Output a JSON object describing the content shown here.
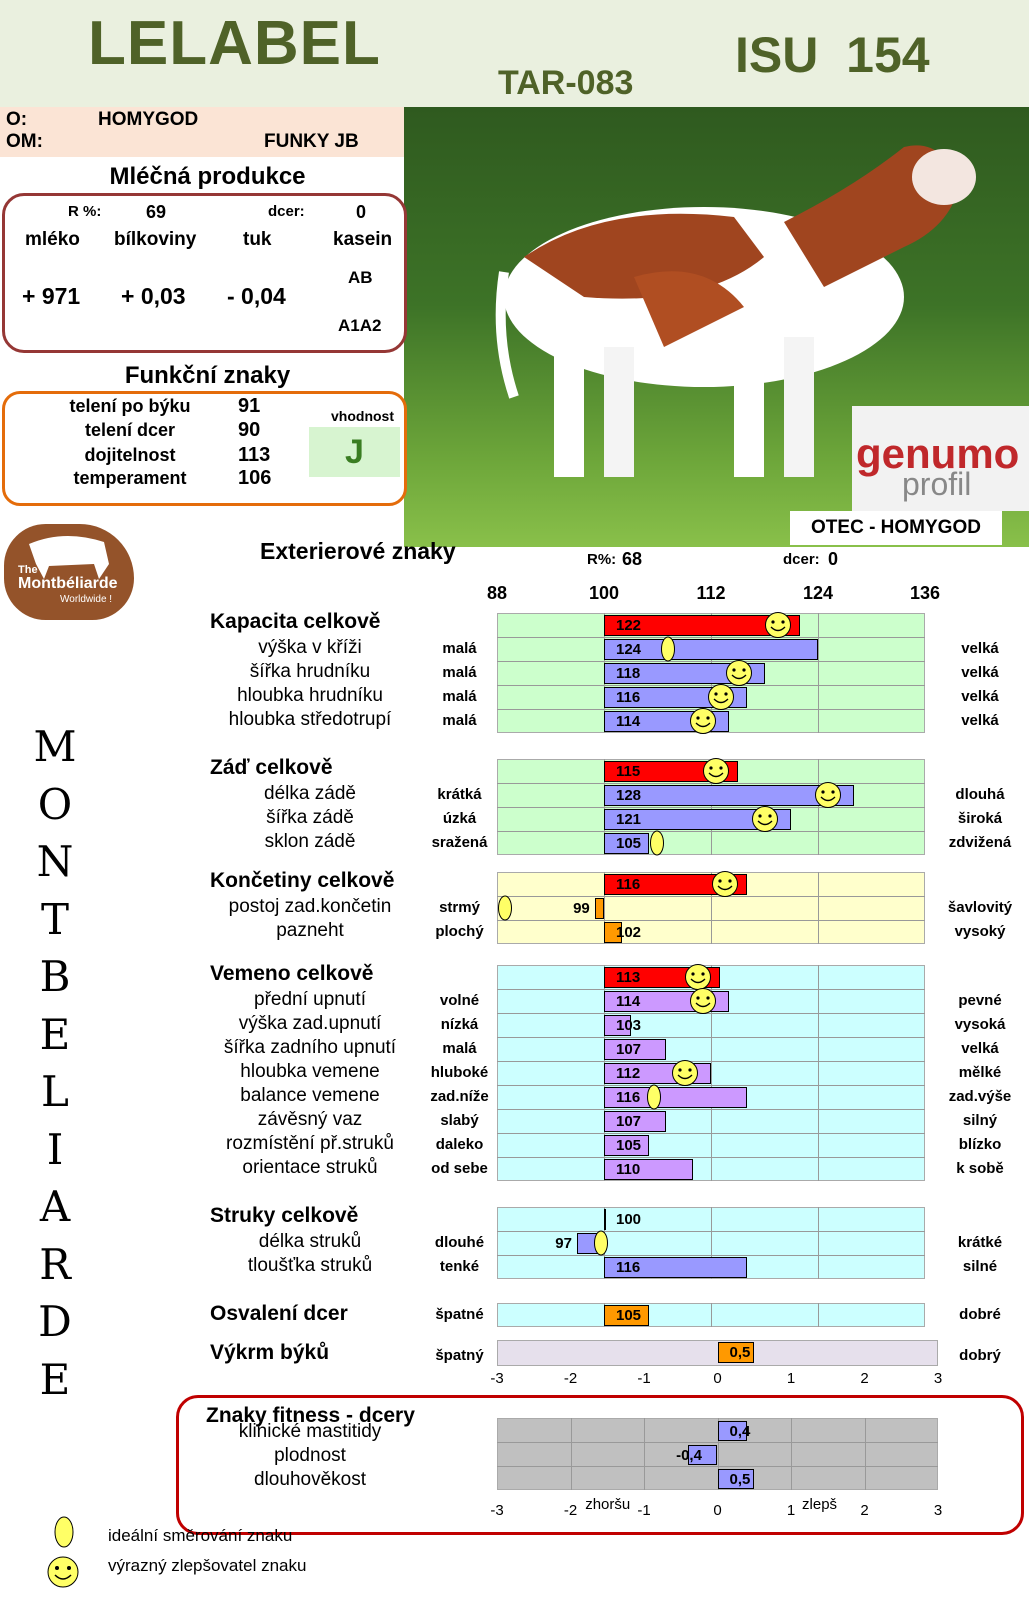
{
  "header": {
    "name": "LELABEL",
    "code": "TAR-083",
    "isu": "ISU  154"
  },
  "pedigree": {
    "o_label": "O:",
    "o_value": "HOMYGOD",
    "om_label": "OM:",
    "om_value": "FUNKY JB"
  },
  "milk": {
    "title": "Mléčná produkce",
    "r_label": "R %:",
    "r_value": "69",
    "dcer_label": "dcer:",
    "dcer_value": "0",
    "cols": [
      "mléko",
      "bílkoviny",
      "tuk",
      "kasein"
    ],
    "values": [
      "+ 971",
      "+ 0,03",
      "- 0,04"
    ],
    "kasein": [
      "AB",
      "A1A2"
    ]
  },
  "functional": {
    "title": "Funkční znaky",
    "vhodnost_label": "vhodnost",
    "vhodnost_value": "J",
    "rows": [
      {
        "label": "telení po býku",
        "value": "91"
      },
      {
        "label": "telení dcer",
        "value": "90"
      },
      {
        "label": "dojitelnost",
        "value": "113"
      },
      {
        "label": "temperament",
        "value": "106"
      }
    ]
  },
  "logo": {
    "the": "The",
    "brand": "Montbéliarde",
    "tag": "Worldwide !"
  },
  "genumo": {
    "line1": "genumo",
    "line2": "profil"
  },
  "otec": "OTEC - HOMYGOD",
  "vertical_title": [
    "M",
    "O",
    "N",
    "T",
    "B",
    "E",
    "L",
    "I",
    "A",
    "R",
    "D",
    "E"
  ],
  "exterior": {
    "title": "Exterierové znaky",
    "r_label": "R%:",
    "r_value": "68",
    "dcer_label": "dcer:",
    "dcer_value": "0",
    "scale": [
      "88",
      "100",
      "112",
      "124",
      "136"
    ]
  },
  "colors": {
    "green": "#ccffcc",
    "yellow": "#ffffcc",
    "cyan": "#ccffff",
    "lavender": "#e6e0ec",
    "gray": "#c0c0c0",
    "red": "#ff0000",
    "blue": "#9999ff",
    "orange": "#ff9900",
    "purple": "#cc99ff"
  },
  "chart_data": [
    {
      "type": "bar",
      "name_hidden": true,
      "axis": [
        88,
        136
      ],
      "base": 100,
      "groups": [
        {
          "title": "Kapacita celkově",
          "total": 122,
          "total_smiley": true,
          "bg": "green",
          "barColor": "blue",
          "rows": [
            {
              "label": "výška v kříži",
              "left": "malá",
              "right": "velká",
              "value": 124,
              "marker": "ideal"
            },
            {
              "label": "šířka hrudníku",
              "left": "malá",
              "right": "velká",
              "value": 118,
              "marker": "smiley"
            },
            {
              "label": "hloubka hrudníku",
              "left": "malá",
              "right": "velká",
              "value": 116,
              "marker": "smiley"
            },
            {
              "label": "hloubka středotrupí",
              "left": "malá",
              "right": "velká",
              "value": 114,
              "marker": "smiley"
            }
          ]
        },
        {
          "title": "Záď celkově",
          "total": 115,
          "total_smiley": true,
          "bg": "green",
          "barColor": "blue",
          "rows": [
            {
              "label": "délka zádě",
              "left": "krátká",
              "right": "dlouhá",
              "value": 128,
              "marker": "smiley"
            },
            {
              "label": "šířka zádě",
              "left": "úzká",
              "right": "široká",
              "value": 121,
              "marker": "smiley"
            },
            {
              "label": "sklon zádě",
              "left": "sražená",
              "right": "zdvižená",
              "value": 105,
              "marker": "ideal"
            }
          ]
        },
        {
          "title": "Končetiny celkově",
          "total": 116,
          "total_smiley": true,
          "bg": "yellow",
          "barColor": "orange",
          "rows": [
            {
              "label": "postoj zad.končetin",
              "left": "strmý",
              "right": "šavlovitý",
              "value": 99,
              "marker": "ideal"
            },
            {
              "label": "pazneht",
              "left": "plochý",
              "right": "vysoký",
              "value": 102,
              "marker": "none"
            }
          ]
        },
        {
          "title": "Vemeno celkově",
          "total": 113,
          "total_smiley": true,
          "bg": "cyan",
          "barColor": "purple",
          "rows": [
            {
              "label": "přední upnutí",
              "left": "volné",
              "right": "pevné",
              "value": 114,
              "marker": "smiley"
            },
            {
              "label": "výška zad.upnutí",
              "left": "nízká",
              "right": "vysoká",
              "value": 103,
              "marker": "none"
            },
            {
              "label": "šířka zadního upnutí",
              "left": "malá",
              "right": "velká",
              "value": 107,
              "marker": "none"
            },
            {
              "label": "hloubka vemene",
              "left": "hluboké",
              "right": "mělké",
              "value": 112,
              "marker": "smiley"
            },
            {
              "label": "balance vemene",
              "left": "zad.níže",
              "right": "zad.výše",
              "value": 116,
              "marker": "ideal"
            },
            {
              "label": "závěsný vaz",
              "left": "slabý",
              "right": "silný",
              "value": 107,
              "marker": "none"
            },
            {
              "label": "rozmístění př.struků",
              "left": "daleko",
              "right": "blízko",
              "value": 105,
              "marker": "none"
            },
            {
              "label": "orientace struků",
              "left": "od sebe",
              "right": "k sobě",
              "value": 110,
              "marker": "none"
            }
          ]
        },
        {
          "title": "Struky celkově",
          "total": 100,
          "total_smiley": false,
          "bg": "cyan",
          "barColor": "blue",
          "rows": [
            {
              "label": "délka struků",
              "left": "dlouhé",
              "right": "krátké",
              "value": 97,
              "marker": "ideal"
            },
            {
              "label": "tloušťka struků",
              "left": "tenké",
              "right": "silné",
              "value": 116,
              "marker": "none"
            }
          ]
        },
        {
          "title": "Osvalení dcer",
          "total": null,
          "bg": "cyan",
          "barColor": "orange",
          "single": true,
          "rows": [
            {
              "label": "",
              "left": "špatné",
              "right": "dobré",
              "value": 105,
              "marker": "none"
            }
          ]
        }
      ]
    },
    {
      "type": "bar",
      "axis": [
        -3,
        3
      ],
      "base": 0,
      "title": "Výkrm býků",
      "left": "špatný",
      "right": "dobrý",
      "value": 0.5,
      "display": "0,5"
    },
    {
      "type": "bar",
      "axis": [
        -3,
        3
      ],
      "base": 0,
      "title": "Znaky fitness - dcery",
      "ticks": [
        "-3",
        "-2",
        "-1",
        "0",
        "1",
        "2",
        "3"
      ],
      "worse": "zhoršu",
      "better": "zlepš",
      "rows": [
        {
          "label": "klinické mastitidy",
          "value": 0.4,
          "display": "0,4"
        },
        {
          "label": "plodnost",
          "value": -0.4,
          "display": "-0,4"
        },
        {
          "label": "dlouhověkost",
          "value": 0.5,
          "display": "0,5"
        }
      ]
    }
  ],
  "legend": {
    "ideal": "ideální směrování znaku",
    "smiley": "výrazný zlepšovatel znaku"
  }
}
